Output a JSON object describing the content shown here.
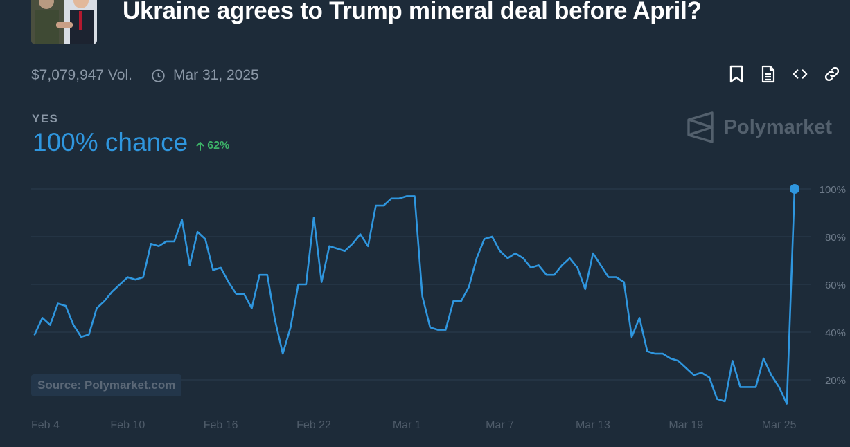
{
  "header": {
    "title": "Ukraine agrees to Trump mineral deal before April?",
    "volume": "$7,079,947 Vol.",
    "end_date": "Mar 31, 2025"
  },
  "actions": [
    {
      "name": "bookmark-icon"
    },
    {
      "name": "document-icon"
    },
    {
      "name": "embed-icon"
    },
    {
      "name": "link-icon"
    }
  ],
  "outcome": {
    "label": "YES",
    "chance": "100% chance",
    "delta": "62%"
  },
  "brand": {
    "name": "Polymarket"
  },
  "source": "Source: Polymarket.com",
  "colors": {
    "background": "#1d2b39",
    "line": "#2f96de",
    "delta": "#3db468",
    "grid": "#2c3d4f",
    "muted": "#8a97a6"
  },
  "chart_data": {
    "type": "line",
    "title": "",
    "xlabel": "",
    "ylabel": "",
    "ylim": [
      0,
      100
    ],
    "x_ticks": [
      "Feb 4",
      "Feb 10",
      "Feb 16",
      "Feb 22",
      "Mar 1",
      "Mar 7",
      "Mar 13",
      "Mar 19",
      "Mar 25"
    ],
    "x_tick_days": [
      0,
      6,
      12,
      18,
      24,
      30,
      36,
      42,
      48
    ],
    "y_ticks": [
      20,
      40,
      60,
      80,
      100
    ],
    "y_tick_labels": [
      "20%",
      "40%",
      "60%",
      "80%",
      "100%"
    ],
    "series": [
      {
        "name": "Yes",
        "x": [
          0,
          0.5,
          1,
          1.5,
          2,
          2.5,
          3,
          3.5,
          4,
          4.5,
          5,
          5.5,
          6,
          6.5,
          7,
          7.5,
          8,
          8.5,
          9,
          9.5,
          10,
          10.5,
          11,
          11.5,
          12,
          12.5,
          13,
          13.5,
          14,
          14.5,
          15,
          15.5,
          16,
          16.5,
          17,
          17.5,
          18,
          18.5,
          19,
          19.5,
          20,
          20.5,
          21,
          21.5,
          22,
          22.5,
          23,
          23.5,
          24,
          24.5,
          25,
          25.5,
          26,
          26.5,
          27,
          27.5,
          28,
          28.5,
          29,
          29.5,
          30,
          30.5,
          31,
          31.5,
          32,
          32.5,
          33,
          33.5,
          34,
          34.5,
          35,
          35.5,
          36,
          36.5,
          37,
          37.5,
          38,
          38.5,
          39,
          39.5,
          40,
          40.5,
          41,
          41.5,
          42,
          42.5,
          43,
          43.5,
          44,
          44.5,
          45,
          45.5,
          46,
          46.5,
          47,
          47.5,
          48,
          48.5,
          49
        ],
        "values": [
          39,
          46,
          43,
          52,
          51,
          43,
          38,
          39,
          50,
          53,
          57,
          60,
          63,
          62,
          63,
          77,
          76,
          78,
          78,
          87,
          68,
          82,
          79,
          66,
          67,
          61,
          56,
          56,
          50,
          64,
          64,
          45,
          31,
          42,
          60,
          60,
          88,
          61,
          76,
          75,
          74,
          77,
          81,
          76,
          93,
          93,
          96,
          96,
          97,
          97,
          55,
          42,
          41,
          41,
          53,
          53,
          59,
          71,
          79,
          80,
          74,
          71,
          73,
          71,
          67,
          68,
          64,
          64,
          68,
          71,
          67,
          58,
          73,
          68,
          63,
          63,
          61,
          38,
          46,
          32,
          31,
          31,
          29,
          28,
          25,
          22,
          23,
          21,
          12,
          11,
          28,
          17,
          17,
          17,
          29,
          22,
          17,
          10,
          100
        ]
      }
    ]
  }
}
